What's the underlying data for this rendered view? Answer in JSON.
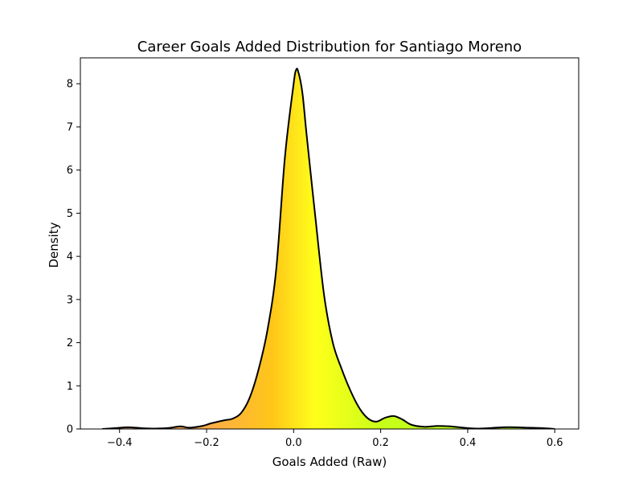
{
  "chart_data": {
    "type": "area",
    "title": "Career Goals Added Distribution for Santiago Moreno",
    "xlabel": "Goals Added (Raw)",
    "ylabel": "Density",
    "xlim": [
      -0.49,
      0.655
    ],
    "ylim": [
      0,
      8.6
    ],
    "x_ticks": [
      -0.4,
      -0.2,
      0.0,
      0.2,
      0.4,
      0.6
    ],
    "x_tick_labels": [
      "−0.4",
      "−0.2",
      "0.0",
      "0.2",
      "0.4",
      "0.6"
    ],
    "y_ticks": [
      0,
      1,
      2,
      3,
      4,
      5,
      6,
      7,
      8
    ],
    "y_tick_labels": [
      "0",
      "1",
      "2",
      "3",
      "4",
      "5",
      "6",
      "7",
      "8"
    ],
    "grid": false,
    "line_color": "#000000",
    "fill_gradient": {
      "stops": [
        {
          "x": -0.44,
          "color": "#f4a060"
        },
        {
          "x": -0.2,
          "color": "#fbab4a"
        },
        {
          "x": -0.05,
          "color": "#ffc619"
        },
        {
          "x": 0.05,
          "color": "#ffff1a"
        },
        {
          "x": 0.2,
          "color": "#c8ff1a"
        },
        {
          "x": 0.6,
          "color": "#a8ff18"
        }
      ]
    },
    "series": [
      {
        "x": [
          -0.44,
          -0.41,
          -0.38,
          -0.35,
          -0.32,
          -0.29,
          -0.26,
          -0.24,
          -0.21,
          -0.19,
          -0.16,
          -0.14,
          -0.12,
          -0.1,
          -0.08,
          -0.06,
          -0.04,
          -0.02,
          0.0,
          0.005,
          0.01,
          0.02,
          0.03,
          0.05,
          0.07,
          0.09,
          0.11,
          0.13,
          0.15,
          0.17,
          0.19,
          0.21,
          0.23,
          0.25,
          0.27,
          0.3,
          0.33,
          0.36,
          0.39,
          0.42,
          0.45,
          0.48,
          0.51,
          0.54,
          0.57,
          0.6
        ],
        "y": [
          0.0,
          0.02,
          0.04,
          0.02,
          0.01,
          0.02,
          0.06,
          0.03,
          0.07,
          0.13,
          0.2,
          0.24,
          0.38,
          0.75,
          1.4,
          2.3,
          3.7,
          6.3,
          8.0,
          8.3,
          8.3,
          7.8,
          6.8,
          4.9,
          3.1,
          2.0,
          1.4,
          0.9,
          0.5,
          0.25,
          0.17,
          0.26,
          0.3,
          0.22,
          0.1,
          0.05,
          0.07,
          0.06,
          0.03,
          0.01,
          0.02,
          0.04,
          0.04,
          0.03,
          0.02,
          0.0
        ]
      }
    ]
  }
}
